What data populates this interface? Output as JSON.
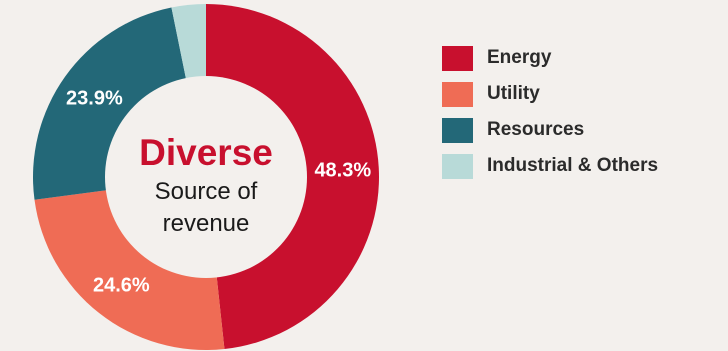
{
  "chart_data": {
    "type": "pie",
    "style": "donut",
    "center_text": {
      "headline": "Diverse",
      "line1": "Source of",
      "line2": "revenue"
    },
    "slices": [
      {
        "label": "Energy",
        "value": 48.3,
        "display": "48.3%",
        "color": "#c8102e"
      },
      {
        "label": "Utility",
        "value": 24.6,
        "display": "24.6%",
        "color": "#ef6c55"
      },
      {
        "label": "Resources",
        "value": 23.9,
        "display": "23.9%",
        "color": "#236878"
      },
      {
        "label": "Industrial & Others",
        "value": 3.2,
        "display": "",
        "color": "#b8dad8"
      }
    ],
    "legend_position": "right"
  }
}
